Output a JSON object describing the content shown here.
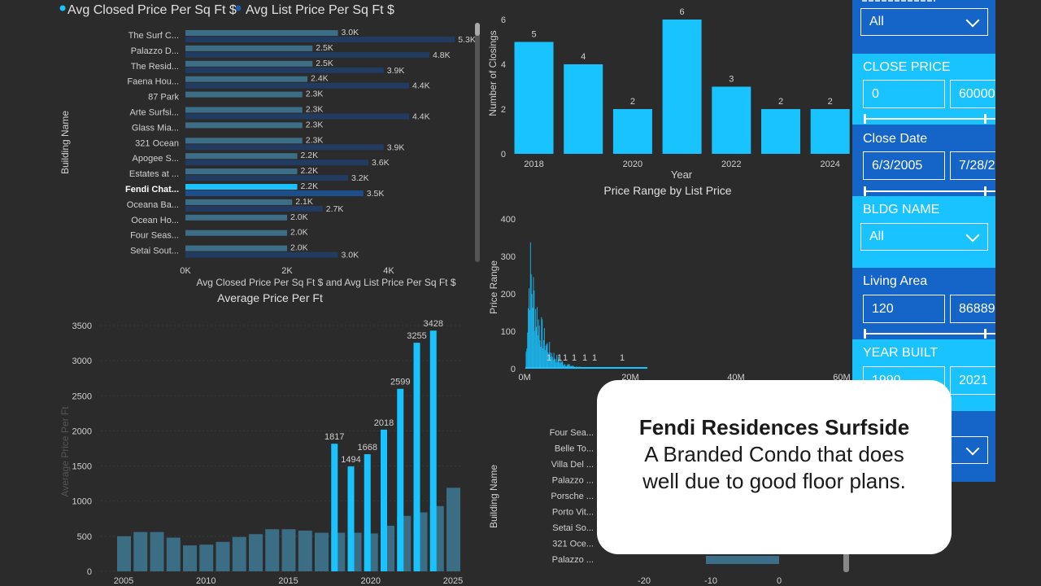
{
  "chart1": {
    "legend": [
      "Avg Closed Price Per Sq Ft $",
      "Avg List Price Per Sq Ft $"
    ],
    "buildings": [
      "The Surf C...",
      "Palazzo D...",
      "The Resid...",
      "Faena Hou...",
      "87 Park",
      "Arte Surfsi...",
      "Glass Mia...",
      "321 Ocean",
      "Apogee S...",
      "Estates at ...",
      "Fendi Chat...",
      "Oceana Ba...",
      "Ocean Ho...",
      "Four Seas...",
      "Setai Sout..."
    ],
    "closed": [
      3000,
      2500,
      2500,
      2400,
      2300,
      2300,
      2300,
      2300,
      2200,
      2200,
      2200,
      2100,
      2000,
      2000,
      2000
    ],
    "list": [
      5300,
      4800,
      3900,
      4400,
      null,
      4400,
      null,
      3900,
      3600,
      3200,
      3500,
      2700,
      null,
      null,
      3000
    ],
    "closed_labels": [
      "3.0K",
      "2.5K",
      "2.5K",
      "2.4K",
      "2.3K",
      "2.3K",
      "2.3K",
      "2.3K",
      "2.2K",
      "2.2K",
      "2.2K",
      "2.1K",
      "2.0K",
      "2.0K",
      "2.0K"
    ],
    "list_labels": [
      "5.3K",
      "4.8K",
      "3.9K",
      "4.4K",
      "",
      "4.4K",
      "",
      "3.9K",
      "3.6K",
      "3.2K",
      "3.5K",
      "2.7K",
      "",
      "",
      "3.0K"
    ],
    "x_ticks": [
      "0K",
      "2K",
      "4K"
    ],
    "xlabel": "Avg Closed Price Per Sq Ft $ and Avg List Price Per Sq Ft $",
    "ylabel": "Building Name",
    "highlight_index": 10,
    "colors": {
      "closed": "#3c6f87",
      "list": "#213c60",
      "highlight": "#19c3ff",
      "highlight_list": "#1e4f8a"
    }
  },
  "chart2": {
    "title": "Average Price Per Ft",
    "ylabel": "Average Price Per Ft",
    "y_ticks": [
      "3500",
      "3000",
      "2500",
      "2000",
      "1500",
      "1000",
      "500",
      "0"
    ],
    "x_ticks": [
      "2005",
      "2010",
      "2015",
      "2020",
      "2025"
    ],
    "years": [
      2005,
      2006,
      2007,
      2008,
      2009,
      2010,
      2011,
      2012,
      2013,
      2014,
      2015,
      2016,
      2017,
      2018,
      2019,
      2020,
      2021,
      2022,
      2023,
      2024,
      2025
    ],
    "background_values": [
      500,
      560,
      560,
      480,
      370,
      380,
      420,
      490,
      530,
      600,
      600,
      580,
      550,
      550,
      550,
      540,
      650,
      790,
      840,
      930,
      1190
    ],
    "highlight": [
      {
        "year": 2018,
        "value": 1817,
        "label": "1817"
      },
      {
        "year": 2019,
        "value": 1494,
        "label": "1494"
      },
      {
        "year": 2020,
        "value": 1668,
        "label": "1668"
      },
      {
        "year": 2021,
        "value": 2018,
        "label": "2018"
      },
      {
        "year": 2022,
        "value": 2599,
        "label": "2599"
      },
      {
        "year": 2023,
        "value": 3255,
        "label": "3255"
      },
      {
        "year": 2024,
        "value": 3428,
        "label": "3428"
      }
    ],
    "colors": {
      "background": "#3b6e84",
      "highlight": "#19c3ff"
    }
  },
  "chart3": {
    "ylabel": "Number of Closings",
    "xlabel": "Year",
    "categories": [
      "2018",
      "2019",
      "2020",
      "2021",
      "2022",
      "2023",
      "2024"
    ],
    "values": [
      5,
      4,
      2,
      6,
      3,
      2,
      2
    ],
    "value_labels": [
      "5",
      "4",
      "2",
      "6",
      "3",
      "2",
      "2"
    ],
    "x_ticks": [
      "2018",
      "2020",
      "2022",
      "2024"
    ],
    "y_ticks": [
      "0",
      "2",
      "4",
      "6"
    ],
    "color": "#19c3ff"
  },
  "chart4": {
    "title": "Price Range by List Price",
    "ylabel": "Price Range",
    "y_ticks": [
      "400",
      "300",
      "200",
      "100",
      "0"
    ],
    "x_ticks": [
      "0M",
      "20M",
      "40M",
      "60M"
    ],
    "small_labels": [
      "1",
      "1",
      "1",
      "1",
      "1",
      "1",
      "1",
      "1"
    ],
    "color": "#19c3ff"
  },
  "chart5": {
    "ylabel": "Building Name",
    "buildings": [
      "Four Sea...",
      "Belle To...",
      "Villa Del ...",
      "Palazzo ...",
      "Porsche ...",
      "Porto Vit...",
      "Setai So...",
      "321 Oce...",
      "Palazzo ..."
    ],
    "x_ticks": [
      "-20",
      "-10",
      "0"
    ]
  },
  "slicers": {
    "top_dropdown_value": "All",
    "close_price": {
      "label": "CLOSE PRICE",
      "min": "0",
      "max": "60000"
    },
    "close_date": {
      "label": "Close Date",
      "min": "6/3/2005",
      "max": "7/28/2"
    },
    "bldg_name": {
      "label": "BLDG NAME",
      "value": "All"
    },
    "living_area": {
      "label": "Living Area",
      "min": "120",
      "max": "86889"
    },
    "year_built": {
      "label": "YEAR BUILT",
      "min": "1990",
      "max": "2021"
    }
  },
  "callout": {
    "title": "Fendi Residences Surfside",
    "line1": "A Branded Condo that does",
    "line2": "well due to good floor plans."
  }
}
